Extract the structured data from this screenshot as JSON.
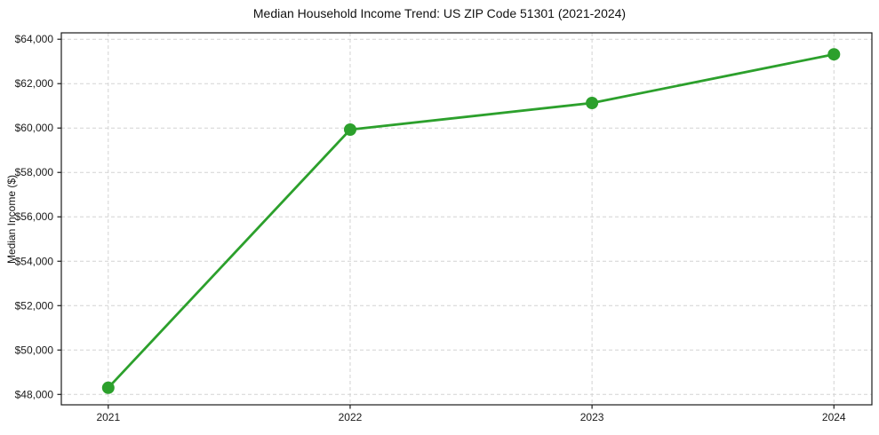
{
  "chart_data": {
    "type": "line",
    "title": "Median Household Income Trend: US ZIP Code 51301 (2021-2024)",
    "xlabel": "",
    "ylabel": "Median Income ($)",
    "x": [
      2021,
      2022,
      2023,
      2024
    ],
    "xtick_labels": [
      "2021",
      "2022",
      "2023",
      "2024"
    ],
    "series": [
      {
        "values": [
          48300,
          59930,
          61130,
          63320
        ],
        "color": "#2ca02c",
        "marker": "circle"
      }
    ],
    "xlim": [
      2020.806,
      2024.157
    ],
    "ylim": [
      47532,
      64288
    ],
    "yticks": [
      48000,
      50000,
      52000,
      54000,
      56000,
      58000,
      60000,
      62000,
      64000
    ],
    "ytick_labels": [
      "$48,000",
      "$50,000",
      "$52,000",
      "$54,000",
      "$56,000",
      "$58,000",
      "$60,000",
      "$62,000",
      "$64,000"
    ],
    "grid": {
      "show": true,
      "style": "dashed",
      "color": "#d3d3d3"
    },
    "legend": {
      "show": false
    },
    "axis_color": "#1a1a1a",
    "background": "#ffffff"
  }
}
